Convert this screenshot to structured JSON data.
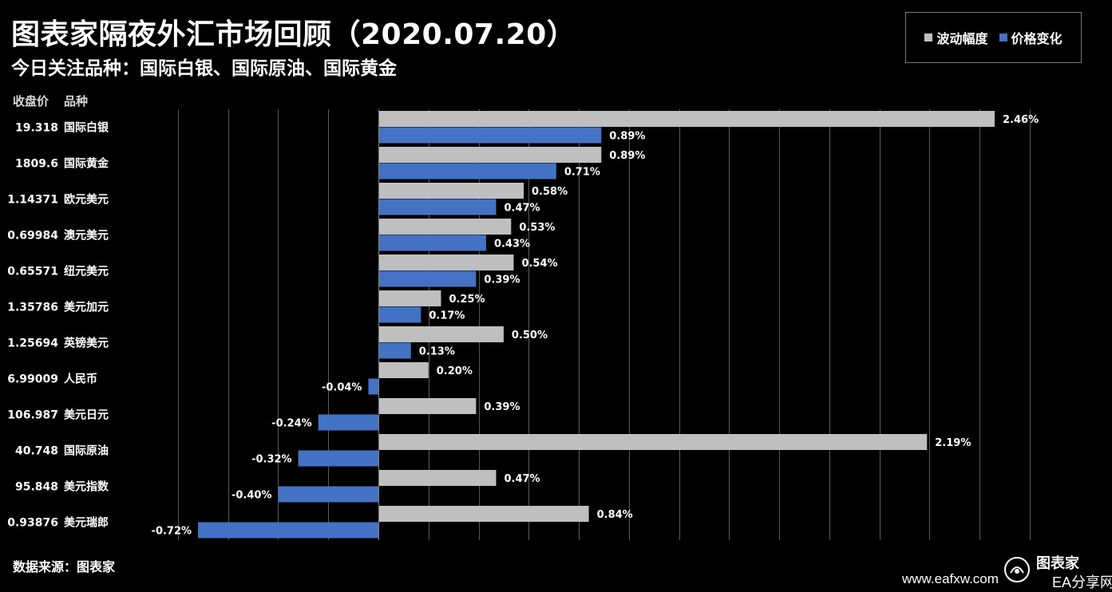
{
  "header": {
    "title": "图表家隔夜外汇市场回顾（2020.07.20）",
    "subtitle": "今日关注品种：国际白银、国际原油、国际黄金"
  },
  "legend": {
    "volatility_label": "波动幅度",
    "change_label": "价格变化"
  },
  "columns": {
    "close_header": "收盘价",
    "name_header": "品种"
  },
  "footer": {
    "source": "数据来源：图表家",
    "watermark_url": "www.eafxw.com",
    "watermark_brand": "EA分享网",
    "watermark_logo": "图表家"
  },
  "colors": {
    "background": "#000000",
    "volatility": "#bfbfbf",
    "change": "#4472c4",
    "grid": "#595959",
    "text": "#ffffff"
  },
  "chart_data": {
    "type": "bar",
    "orientation": "horizontal",
    "grid": true,
    "legend_position": "top-right",
    "xlim": [
      -0.015,
      0.028
    ],
    "value_format": "percent",
    "categories": [
      "国际白银",
      "国际黄金",
      "欧元美元",
      "澳元美元",
      "纽元美元",
      "美元加元",
      "英镑美元",
      "人民币",
      "美元日元",
      "国际原油",
      "美元指数",
      "美元瑞郎"
    ],
    "close_prices": [
      "19.318",
      "1809.6",
      "1.14371",
      "0.69984",
      "0.65571",
      "1.35786",
      "1.25694",
      "6.99009",
      "106.987",
      "40.748",
      "95.848",
      "0.93876"
    ],
    "series": [
      {
        "name": "波动幅度",
        "values": [
          0.0246,
          0.0089,
          0.0058,
          0.0053,
          0.0054,
          0.0025,
          0.005,
          0.002,
          0.0039,
          0.0219,
          0.0047,
          0.0084
        ],
        "labels": [
          "2.46%",
          "0.89%",
          "0.58%",
          "0.53%",
          "0.54%",
          "0.25%",
          "0.50%",
          "0.20%",
          "0.39%",
          "2.19%",
          "0.47%",
          "0.84%"
        ]
      },
      {
        "name": "价格变化",
        "values": [
          0.0089,
          0.0071,
          0.0047,
          0.0043,
          0.0039,
          0.0017,
          0.0013,
          -0.0004,
          -0.0024,
          -0.0032,
          -0.004,
          -0.0072
        ],
        "labels": [
          "0.89%",
          "0.71%",
          "0.47%",
          "0.43%",
          "0.39%",
          "0.17%",
          "0.13%",
          "-0.04%",
          "-0.24%",
          "-0.32%",
          "-0.40%",
          "-0.72%"
        ]
      }
    ]
  }
}
